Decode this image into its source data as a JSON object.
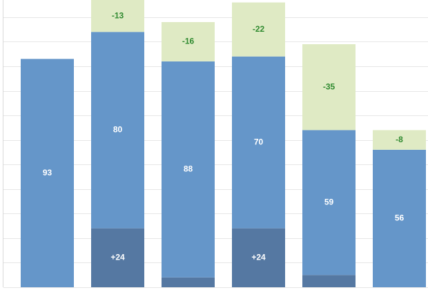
{
  "chart_data": {
    "type": "bar",
    "stacked": true,
    "categories": [
      "",
      "",
      "",
      "",
      "",
      ""
    ],
    "series": [
      {
        "color": "#5578a2",
        "values": [
          0,
          24,
          4,
          24,
          5,
          0
        ],
        "labels": [
          "",
          "+24",
          "",
          "+24",
          "",
          ""
        ]
      },
      {
        "color": "#6596c9",
        "values": [
          93,
          80,
          88,
          70,
          59,
          56
        ],
        "labels": [
          "93",
          "80",
          "88",
          "70",
          "59",
          "56"
        ]
      },
      {
        "color": "#dfeac4",
        "values": [
          0,
          13,
          16,
          22,
          35,
          8
        ],
        "labels": [
          "",
          "-13",
          "-16",
          "-22",
          "-35",
          "-8"
        ]
      }
    ],
    "label_colors": [
      "#ffffff",
      "#ffffff",
      "#2f8a2f"
    ],
    "ylim": [
      0,
      117
    ],
    "grid": true,
    "legend": "none"
  }
}
